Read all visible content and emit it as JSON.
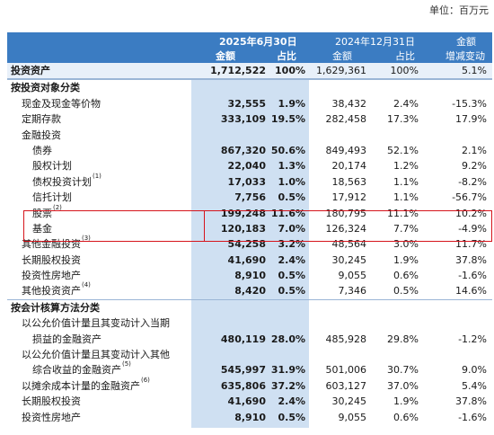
{
  "unit_label": "单位：百万元",
  "header": {
    "period_2025": "2025年6月30日",
    "period_2024": "2024年12月31日",
    "amount": "金额",
    "ratio": "占比",
    "change_1": "金额",
    "change_2": "增减变动"
  },
  "rows": [
    {
      "label": "投资资产",
      "a": "1,712,522",
      "b": "100%",
      "c": "1,629,361",
      "d": "100%",
      "e": "5.1%"
    },
    {
      "label": "按投资对象分类"
    },
    {
      "label": "现金及现金等价物",
      "a": "32,555",
      "b": "1.9%",
      "c": "38,432",
      "d": "2.4%",
      "e": "-15.3%"
    },
    {
      "label": "定期存款",
      "a": "333,109",
      "b": "19.5%",
      "c": "282,458",
      "d": "17.3%",
      "e": "17.9%"
    },
    {
      "label": "金融投资"
    },
    {
      "label": "债券",
      "a": "867,320",
      "b": "50.6%",
      "c": "849,493",
      "d": "52.1%",
      "e": "2.1%"
    },
    {
      "label": "股权计划",
      "a": "22,040",
      "b": "1.3%",
      "c": "20,174",
      "d": "1.2%",
      "e": "9.2%"
    },
    {
      "label": "债权投资计划",
      "sup": "(1)",
      "a": "17,033",
      "b": "1.0%",
      "c": "18,563",
      "d": "1.1%",
      "e": "-8.2%"
    },
    {
      "label": "信托计划",
      "a": "7,756",
      "b": "0.5%",
      "c": "17,912",
      "d": "1.1%",
      "e": "-56.7%"
    },
    {
      "label": "股票",
      "sup": "(2)",
      "a": "199,248",
      "b": "11.6%",
      "c": "180,795",
      "d": "11.1%",
      "e": "10.2%"
    },
    {
      "label": "基金",
      "a": "120,183",
      "b": "7.0%",
      "c": "126,324",
      "d": "7.7%",
      "e": "-4.9%"
    },
    {
      "label": "其他金融投资",
      "sup": "(3)",
      "a": "54,258",
      "b": "3.2%",
      "c": "48,564",
      "d": "3.0%",
      "e": "11.7%"
    },
    {
      "label": "长期股权投资",
      "a": "41,690",
      "b": "2.4%",
      "c": "30,245",
      "d": "1.9%",
      "e": "37.8%"
    },
    {
      "label": "投资性房地产",
      "a": "8,910",
      "b": "0.5%",
      "c": "9,055",
      "d": "0.6%",
      "e": "-1.6%"
    },
    {
      "label": "其他投资资产",
      "sup": "(4)",
      "a": "8,420",
      "b": "0.5%",
      "c": "7,346",
      "d": "0.5%",
      "e": "14.6%"
    },
    {
      "label": "按会计核算方法分类"
    },
    {
      "label": "以公允价值计量且其变动计入当期"
    },
    {
      "label": "损益的金融资产",
      "a": "480,119",
      "b": "28.0%",
      "c": "485,928",
      "d": "29.8%",
      "e": "-1.2%"
    },
    {
      "label": "以公允价值计量且其变动计入其他"
    },
    {
      "label": "综合收益的金融资产",
      "sup": "(5)",
      "a": "545,997",
      "b": "31.9%",
      "c": "501,006",
      "d": "30.7%",
      "e": "9.0%"
    },
    {
      "label": "以摊余成本计量的金融资产",
      "sup": "(6)",
      "a": "635,806",
      "b": "37.2%",
      "c": "603,127",
      "d": "37.0%",
      "e": "5.4%"
    },
    {
      "label": "长期股权投资",
      "a": "41,690",
      "b": "2.4%",
      "c": "30,245",
      "d": "1.9%",
      "e": "37.8%"
    },
    {
      "label": "投资性房地产",
      "a": "8,910",
      "b": "0.5%",
      "c": "9,055",
      "d": "0.6%",
      "e": "-1.6%"
    }
  ]
}
